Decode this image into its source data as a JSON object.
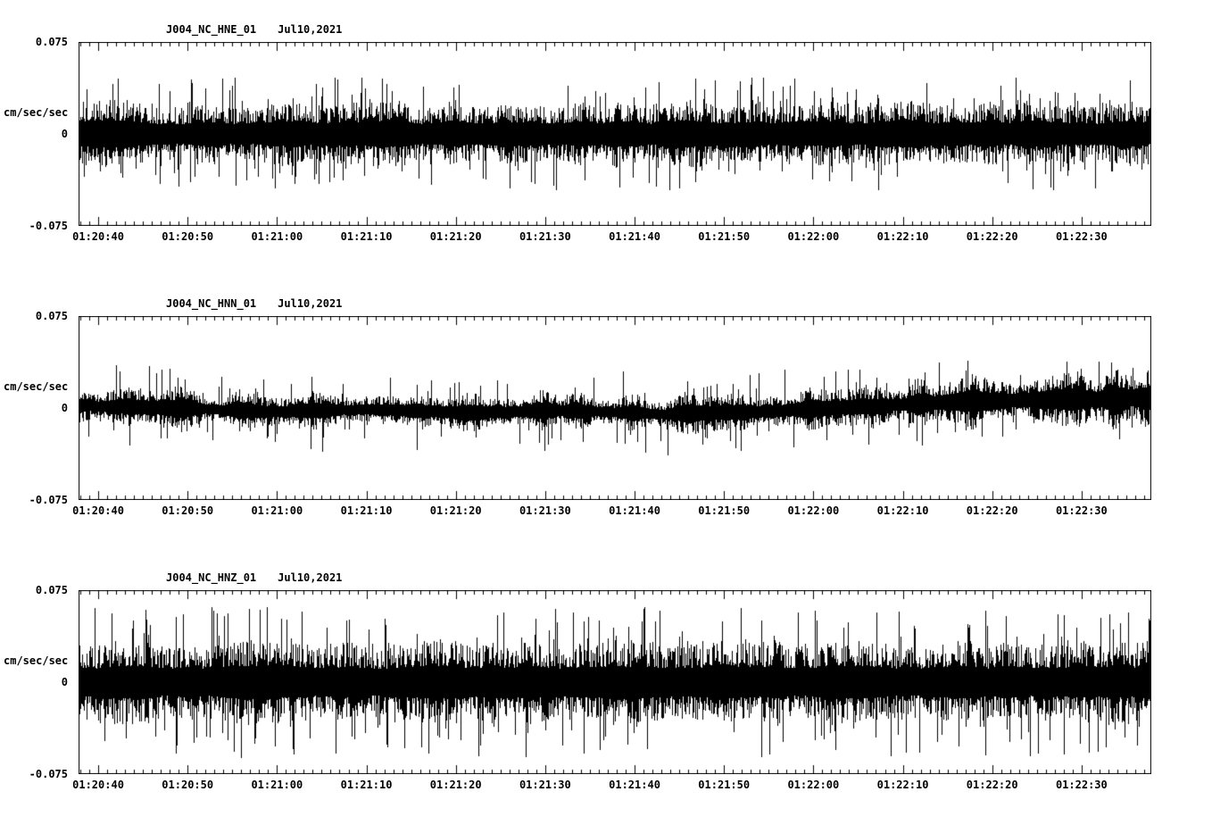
{
  "figure": {
    "background": "#ffffff",
    "trace_color": "#000000"
  },
  "chart_data": [
    {
      "type": "line",
      "title": "J004_NC_HNE_01",
      "date": "Jul10,2021",
      "ylabel": "cm/sec/sec",
      "ylim": [
        -0.075,
        0.075
      ],
      "yticks": [
        0.075,
        0,
        -0.075
      ],
      "ytick_labels": [
        "0.075",
        "0",
        "-0.075"
      ],
      "xtick_labels": [
        "01:20:40",
        "01:20:50",
        "01:21:00",
        "01:21:10",
        "01:21:20",
        "01:21:30",
        "01:21:40",
        "01:21:50",
        "01:22:00",
        "01:22:10",
        "01:22:20",
        "01:22:30"
      ],
      "x_window_seconds": 120,
      "x_first_tick_offset_seconds": 2.2,
      "x_major_tick_seconds": 10,
      "x_minor_tick_seconds": 1,
      "grid": false,
      "legend": false,
      "noise_model": {
        "seed": 101,
        "core_envelope": [
          0.021,
          0.02,
          0.021,
          0.02,
          0.021,
          0.02,
          0.021,
          0.02,
          0.021,
          0.02,
          0.021,
          0.021
        ],
        "baseline_wander": [
          0,
          0,
          0,
          0,
          0,
          0,
          0,
          0,
          0,
          0,
          0,
          0
        ],
        "spike_max": 0.046,
        "spike_probability": 0.1,
        "am_depth": 0.15
      }
    },
    {
      "type": "line",
      "title": "J004_NC_HNN_01",
      "date": "Jul10,2021",
      "ylabel": "cm/sec/sec",
      "ylim": [
        -0.075,
        0.075
      ],
      "yticks": [
        0.075,
        0,
        -0.075
      ],
      "ytick_labels": [
        "0.075",
        "0",
        "-0.075"
      ],
      "xtick_labels": [
        "01:20:40",
        "01:20:50",
        "01:21:00",
        "01:21:10",
        "01:21:20",
        "01:21:30",
        "01:21:40",
        "01:21:50",
        "01:22:00",
        "01:22:10",
        "01:22:20",
        "01:22:30"
      ],
      "x_window_seconds": 120,
      "x_first_tick_offset_seconds": 2.2,
      "x_major_tick_seconds": 10,
      "x_minor_tick_seconds": 1,
      "grid": false,
      "legend": false,
      "noise_model": {
        "seed": 202,
        "core_envelope": [
          0.01,
          0.012,
          0.011,
          0.01,
          0.012,
          0.011,
          0.012,
          0.013,
          0.012,
          0.015,
          0.017,
          0.018
        ],
        "baseline_wander": [
          0.002,
          0.0,
          -0.003,
          -0.001,
          -0.004,
          -0.002,
          -0.005,
          -0.003,
          0.001,
          0.005,
          0.007,
          0.008
        ],
        "spike_max": 0.034,
        "spike_probability": 0.08,
        "am_depth": 0.35
      }
    },
    {
      "type": "line",
      "title": "J004_NC_HNZ_01",
      "date": "Jul10,2021",
      "ylabel": "cm/sec/sec",
      "ylim": [
        -0.075,
        0.075
      ],
      "yticks": [
        0.075,
        0,
        -0.075
      ],
      "ytick_labels": [
        "0.075",
        "0",
        "-0.075"
      ],
      "xtick_labels": [
        "01:20:40",
        "01:20:50",
        "01:21:00",
        "01:21:10",
        "01:21:20",
        "01:21:30",
        "01:21:40",
        "01:21:50",
        "01:22:00",
        "01:22:10",
        "01:22:20",
        "01:22:30"
      ],
      "x_window_seconds": 120,
      "x_first_tick_offset_seconds": 2.2,
      "x_major_tick_seconds": 10,
      "x_minor_tick_seconds": 1,
      "grid": false,
      "legend": false,
      "noise_model": {
        "seed": 303,
        "core_envelope": [
          0.027,
          0.026,
          0.027,
          0.026,
          0.027,
          0.027,
          0.026,
          0.027,
          0.026,
          0.027,
          0.026,
          0.027
        ],
        "baseline_wander": [
          0,
          0,
          0,
          0,
          0,
          0,
          0,
          0,
          0,
          0,
          0,
          0
        ],
        "spike_max": 0.062,
        "spike_probability": 0.12,
        "am_depth": 0.12
      }
    }
  ]
}
